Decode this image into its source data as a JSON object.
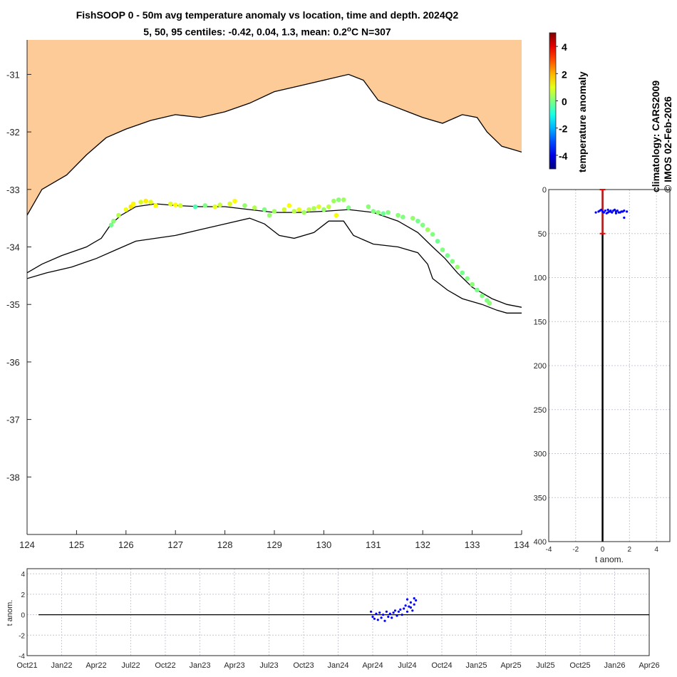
{
  "title": {
    "line1": "FishSOOP 0 - 50m avg temperature anomaly vs location, time and depth. 2024Q2",
    "line2_prefix": "5, 50, 95 centiles: -0.42, 0.04, 1.3, mean: 0.2",
    "line2_deg": "o",
    "line2_suffix": "C N=307"
  },
  "colorbar": {
    "label": "temperature anomaly",
    "ticks": [
      4,
      2,
      0,
      -2,
      -4
    ],
    "range": [
      -5,
      5
    ]
  },
  "side_labels": {
    "climatology": "climatology: CARS2009",
    "imos": "© IMOS 02-Feb-2026"
  },
  "colors": {
    "land": "#fccb97",
    "profile_points": "#0000ff",
    "centile_bar": "#ff0000",
    "axis_text": "#262626"
  },
  "chart_data": [
    {
      "type": "scatter",
      "name": "map",
      "xlabel": "",
      "ylabel": "",
      "xlim": [
        124,
        134
      ],
      "ylim": [
        -39,
        -30.4
      ],
      "xticks": [
        124,
        125,
        126,
        127,
        128,
        129,
        130,
        131,
        132,
        133,
        134
      ],
      "yticks": [
        -31,
        -32,
        -33,
        -34,
        -35,
        -36,
        -37,
        -38
      ],
      "coastline": [
        [
          124.0,
          -33.45
        ],
        [
          124.3,
          -33.0
        ],
        [
          124.8,
          -32.75
        ],
        [
          125.2,
          -32.4
        ],
        [
          125.6,
          -32.1
        ],
        [
          126.0,
          -31.95
        ],
        [
          126.5,
          -31.8
        ],
        [
          127.0,
          -31.7
        ],
        [
          127.5,
          -31.75
        ],
        [
          128.0,
          -31.65
        ],
        [
          128.5,
          -31.5
        ],
        [
          129.0,
          -31.3
        ],
        [
          129.5,
          -31.2
        ],
        [
          130.0,
          -31.1
        ],
        [
          130.5,
          -31.0
        ],
        [
          130.8,
          -31.1
        ],
        [
          131.1,
          -31.45
        ],
        [
          131.4,
          -31.55
        ],
        [
          131.7,
          -31.65
        ],
        [
          132.0,
          -31.75
        ],
        [
          132.4,
          -31.85
        ],
        [
          132.8,
          -31.7
        ],
        [
          133.1,
          -31.75
        ],
        [
          133.3,
          -32.0
        ],
        [
          133.6,
          -32.25
        ],
        [
          133.8,
          -32.3
        ],
        [
          134.0,
          -32.35
        ]
      ],
      "contour_shallow": [
        [
          124.0,
          -34.45
        ],
        [
          124.3,
          -34.3
        ],
        [
          124.7,
          -34.15
        ],
        [
          125.2,
          -34.0
        ],
        [
          125.5,
          -33.85
        ],
        [
          125.7,
          -33.6
        ],
        [
          125.9,
          -33.45
        ],
        [
          126.2,
          -33.3
        ],
        [
          126.6,
          -33.25
        ],
        [
          127.0,
          -33.28
        ],
        [
          127.5,
          -33.3
        ],
        [
          128.0,
          -33.3
        ],
        [
          128.5,
          -33.35
        ],
        [
          129.0,
          -33.4
        ],
        [
          129.5,
          -33.4
        ],
        [
          130.0,
          -33.38
        ],
        [
          130.5,
          -33.35
        ],
        [
          131.0,
          -33.4
        ],
        [
          131.5,
          -33.55
        ],
        [
          131.9,
          -33.75
        ],
        [
          132.2,
          -34.0
        ],
        [
          132.45,
          -34.2
        ],
        [
          132.7,
          -34.45
        ],
        [
          133.0,
          -34.7
        ],
        [
          133.4,
          -34.9
        ],
        [
          133.7,
          -35.0
        ],
        [
          134.0,
          -35.05
        ]
      ],
      "contour_deep": [
        [
          124.0,
          -34.55
        ],
        [
          124.4,
          -34.45
        ],
        [
          124.9,
          -34.35
        ],
        [
          125.4,
          -34.2
        ],
        [
          125.8,
          -34.05
        ],
        [
          126.2,
          -33.9
        ],
        [
          126.6,
          -33.85
        ],
        [
          127.0,
          -33.8
        ],
        [
          127.5,
          -33.7
        ],
        [
          128.0,
          -33.6
        ],
        [
          128.5,
          -33.5
        ],
        [
          128.8,
          -33.6
        ],
        [
          129.1,
          -33.8
        ],
        [
          129.4,
          -33.85
        ],
        [
          129.8,
          -33.75
        ],
        [
          130.1,
          -33.55
        ],
        [
          130.4,
          -33.55
        ],
        [
          130.6,
          -33.8
        ],
        [
          131.0,
          -33.95
        ],
        [
          131.5,
          -34.0
        ],
        [
          131.9,
          -34.1
        ],
        [
          132.1,
          -34.3
        ],
        [
          132.2,
          -34.55
        ],
        [
          132.5,
          -34.75
        ],
        [
          132.8,
          -34.9
        ],
        [
          133.2,
          -35.0
        ],
        [
          133.5,
          -35.1
        ],
        [
          133.7,
          -35.15
        ],
        [
          134.0,
          -35.15
        ]
      ],
      "points": [
        [
          125.7,
          -33.62,
          -0.1
        ],
        [
          125.75,
          -33.55,
          0.1
        ],
        [
          125.85,
          -33.45,
          0.5
        ],
        [
          126.0,
          -33.35,
          1.1
        ],
        [
          126.1,
          -33.3,
          1.5
        ],
        [
          126.15,
          -33.25,
          1.3
        ],
        [
          126.3,
          -33.22,
          0.9
        ],
        [
          126.4,
          -33.2,
          1.4
        ],
        [
          126.5,
          -33.22,
          1.0
        ],
        [
          126.6,
          -33.28,
          1.2
        ],
        [
          126.9,
          -33.25,
          1.0
        ],
        [
          127.0,
          -33.27,
          1.3
        ],
        [
          127.1,
          -33.28,
          0.8
        ],
        [
          127.4,
          -33.3,
          -0.5
        ],
        [
          127.6,
          -33.28,
          0.0
        ],
        [
          127.8,
          -33.3,
          1.0
        ],
        [
          127.9,
          -33.27,
          0.7
        ],
        [
          128.1,
          -33.25,
          0.9
        ],
        [
          128.2,
          -33.2,
          1.2
        ],
        [
          128.4,
          -33.28,
          0.2
        ],
        [
          128.6,
          -33.32,
          0.5
        ],
        [
          128.8,
          -33.35,
          0.0
        ],
        [
          128.9,
          -33.45,
          0.2
        ],
        [
          129.0,
          -33.38,
          0.3
        ],
        [
          129.2,
          -33.35,
          0.8
        ],
        [
          129.3,
          -33.28,
          1.2
        ],
        [
          129.4,
          -33.38,
          0.5
        ],
        [
          129.5,
          -33.35,
          1.0
        ],
        [
          129.6,
          -33.4,
          0.3
        ],
        [
          129.7,
          -33.35,
          0.6
        ],
        [
          129.8,
          -33.33,
          0.4
        ],
        [
          129.9,
          -33.3,
          0.9
        ],
        [
          130.0,
          -33.35,
          0.2
        ],
        [
          130.1,
          -33.3,
          0.6
        ],
        [
          130.2,
          -33.2,
          0.3
        ],
        [
          130.25,
          -33.45,
          1.2
        ],
        [
          130.3,
          -33.18,
          0.1
        ],
        [
          130.4,
          -33.18,
          0.3
        ],
        [
          130.5,
          -33.32,
          0.0
        ],
        [
          130.9,
          -33.3,
          0.1
        ],
        [
          131.0,
          -33.38,
          0.0
        ],
        [
          131.1,
          -33.4,
          0.1
        ],
        [
          131.2,
          -33.42,
          -0.2
        ],
        [
          131.3,
          -33.4,
          0.0
        ],
        [
          131.5,
          -33.45,
          0.1
        ],
        [
          131.6,
          -33.48,
          0.0
        ],
        [
          131.8,
          -33.5,
          0.2
        ],
        [
          131.9,
          -33.55,
          -0.1
        ],
        [
          132.0,
          -33.62,
          0.0
        ],
        [
          132.1,
          -33.7,
          0.3
        ],
        [
          132.2,
          -33.78,
          0.0
        ],
        [
          132.3,
          -33.9,
          -0.2
        ],
        [
          132.4,
          -34.05,
          0.0
        ],
        [
          132.5,
          -34.15,
          -0.1
        ],
        [
          132.6,
          -34.25,
          0.0
        ],
        [
          132.7,
          -34.35,
          0.2
        ],
        [
          132.8,
          -34.45,
          -0.1
        ],
        [
          132.9,
          -34.55,
          0.0
        ],
        [
          133.0,
          -34.65,
          0.1
        ],
        [
          133.1,
          -34.75,
          -0.1
        ],
        [
          133.2,
          -34.85,
          0.0
        ],
        [
          133.3,
          -34.93,
          0.0
        ],
        [
          133.35,
          -34.98,
          0.1
        ]
      ]
    },
    {
      "type": "scatter",
      "name": "depth-profile",
      "xlabel": "t anom.",
      "ylabel": "",
      "xlim": [
        -4,
        5
      ],
      "ylim": [
        400,
        0
      ],
      "xticks": [
        -4,
        -2,
        0,
        2,
        4
      ],
      "yticks": [
        0,
        50,
        100,
        150,
        200,
        250,
        300,
        350,
        400
      ],
      "centile_bar": {
        "depth_top": 0,
        "depth_bottom": 50,
        "x": 0.0
      },
      "points": [
        [
          0.0,
          25
        ],
        [
          0.2,
          24
        ],
        [
          0.4,
          26
        ],
        [
          0.6,
          25
        ],
        [
          0.8,
          24
        ],
        [
          1.0,
          25
        ],
        [
          1.2,
          26
        ],
        [
          1.4,
          25
        ],
        [
          1.6,
          24
        ],
        [
          -0.3,
          25
        ],
        [
          -0.5,
          26
        ],
        [
          -0.1,
          23
        ],
        [
          0.3,
          27
        ],
        [
          0.7,
          26
        ],
        [
          1.1,
          24
        ],
        [
          0.5,
          25
        ],
        [
          0.9,
          23
        ],
        [
          1.3,
          26
        ],
        [
          1.5,
          25
        ],
        [
          -0.2,
          24
        ],
        [
          0.1,
          26
        ],
        [
          0.6,
          24
        ],
        [
          1.8,
          25
        ],
        [
          1.0,
          27
        ],
        [
          0.4,
          23
        ],
        [
          1.6,
          32
        ]
      ]
    },
    {
      "type": "scatter",
      "name": "time-series",
      "xlabel": "",
      "ylabel": "t anom.",
      "ylim": [
        -4,
        4.5
      ],
      "yticks": [
        4,
        2,
        0,
        -2,
        -4
      ],
      "xticks": [
        "Oct21",
        "Jan22",
        "Apr22",
        "Jul22",
        "Oct22",
        "Jan23",
        "Apr23",
        "Jul23",
        "Oct23",
        "Jan24",
        "Apr24",
        "Jul24",
        "Oct24",
        "Jan25",
        "Apr25",
        "Jul25",
        "Oct25",
        "Jan26",
        "Apr26"
      ],
      "points": [
        [
          9.95,
          0.3
        ],
        [
          10.0,
          -0.2
        ],
        [
          10.05,
          -0.4
        ],
        [
          10.1,
          0.1
        ],
        [
          10.15,
          -0.5
        ],
        [
          10.2,
          0.2
        ],
        [
          10.25,
          -0.3
        ],
        [
          10.3,
          0.0
        ],
        [
          10.35,
          -0.6
        ],
        [
          10.4,
          0.3
        ],
        [
          10.45,
          -0.2
        ],
        [
          10.5,
          0.1
        ],
        [
          10.55,
          -0.3
        ],
        [
          10.6,
          0.2
        ],
        [
          10.65,
          0.4
        ],
        [
          10.7,
          -0.1
        ],
        [
          10.75,
          0.3
        ],
        [
          10.8,
          0.5
        ],
        [
          10.85,
          0.0
        ],
        [
          10.9,
          0.6
        ],
        [
          10.95,
          0.9
        ],
        [
          11.0,
          1.5
        ],
        [
          11.05,
          0.8
        ],
        [
          11.1,
          1.2
        ],
        [
          11.15,
          0.4
        ],
        [
          11.2,
          1.0
        ],
        [
          11.25,
          1.4
        ],
        [
          11.1,
          0.7
        ],
        [
          11.2,
          1.6
        ],
        [
          11.0,
          0.3
        ]
      ]
    }
  ]
}
